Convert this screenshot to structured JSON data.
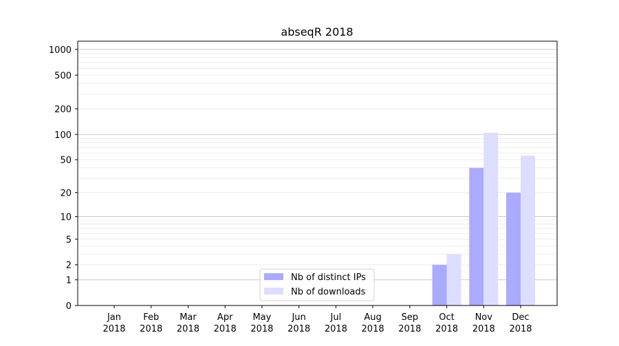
{
  "chart_data": {
    "type": "bar",
    "title": "abseqR 2018",
    "xlabel": "",
    "ylabel": "",
    "yscale": "log(x+1)",
    "ylim": [
      0,
      1250
    ],
    "yticks": [
      0,
      1,
      2,
      5,
      10,
      20,
      50,
      100,
      200,
      500,
      1000
    ],
    "grid": true,
    "legend_position": "bottom-center",
    "categories": [
      [
        "Jan",
        "2018"
      ],
      [
        "Feb",
        "2018"
      ],
      [
        "Mar",
        "2018"
      ],
      [
        "Apr",
        "2018"
      ],
      [
        "May",
        "2018"
      ],
      [
        "Jun",
        "2018"
      ],
      [
        "Jul",
        "2018"
      ],
      [
        "Aug",
        "2018"
      ],
      [
        "Sep",
        "2018"
      ],
      [
        "Oct",
        "2018"
      ],
      [
        "Nov",
        "2018"
      ],
      [
        "Dec",
        "2018"
      ]
    ],
    "series": [
      {
        "name": "Nb of distinct IPs",
        "color": "#aaaaff",
        "values": [
          0,
          0,
          0,
          0,
          0,
          0,
          0,
          0,
          0,
          2,
          40,
          20
        ]
      },
      {
        "name": "Nb of downloads",
        "color": "#ddddff",
        "values": [
          0,
          0,
          0,
          0,
          0,
          0,
          0,
          0,
          0,
          3,
          105,
          56
        ]
      }
    ]
  }
}
